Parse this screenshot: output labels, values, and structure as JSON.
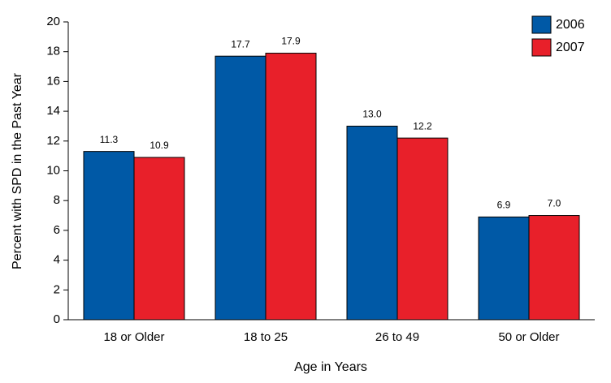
{
  "chart_data": {
    "type": "bar",
    "x_label": "Age in Years",
    "y_label": "Percent with SPD in the Past Year",
    "categories": [
      "18 or Older",
      "18 to 25",
      "26 to 49",
      "50 or Older"
    ],
    "series": [
      {
        "name": "2006",
        "color": "#0059a6",
        "values": [
          11.3,
          17.7,
          13.0,
          6.9
        ],
        "value_labels": [
          "11.3",
          "17.7",
          "13.0",
          "6.9"
        ]
      },
      {
        "name": "2007",
        "color": "#e8202a",
        "values": [
          10.9,
          17.9,
          12.2,
          7.0
        ],
        "value_labels": [
          "10.9",
          "17.9",
          "12.2",
          "7.0"
        ]
      }
    ],
    "ylim": [
      0,
      20
    ],
    "yticks": [
      0,
      2,
      4,
      6,
      8,
      10,
      12,
      14,
      16,
      18,
      20
    ],
    "grid": false,
    "legend_position": "top-right"
  }
}
